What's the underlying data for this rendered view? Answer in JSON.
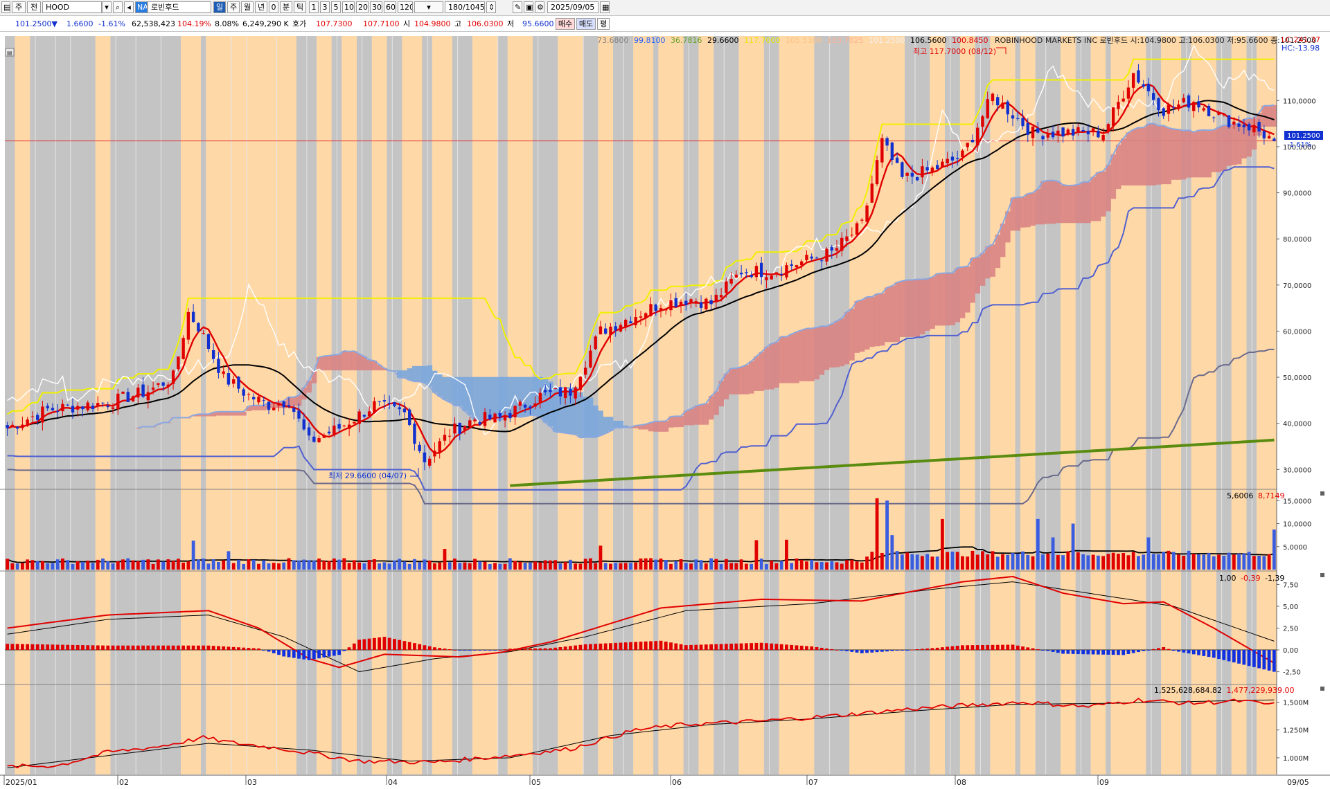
{
  "toolbar": {
    "period_buttons": [
      "주",
      "전"
    ],
    "ticker": "HOOD",
    "market_badge": "NA",
    "stock_name": "로빈후드",
    "mode_button": "일",
    "interval_buttons": [
      "주",
      "월",
      "년",
      "0",
      "분",
      "틱"
    ],
    "minute_buttons": [
      "1",
      "3",
      "5",
      "10",
      "20",
      "30",
      "60",
      "120"
    ],
    "bar_count": "180/1045",
    "date": "2025/09/05"
  },
  "quote": {
    "price": "101.2500▼",
    "change": "1.6600",
    "change_pct": "-1.61%",
    "volume": "62,538,423",
    "vol_ratio": "104.19%",
    "turnover": "8.08%",
    "amount": "6,249,290 K",
    "bid_label": "호가",
    "bid1": "107.7300",
    "bid2": "107.7100",
    "open_label": "시",
    "open": "104.9800",
    "high_label": "고",
    "high": "106.0300",
    "low_label": "저",
    "low": "95.6600",
    "buy_label": "매수",
    "sell_label": "매도",
    "eval_label": "평"
  },
  "chart_header": {
    "ma_values": [
      "73.6800",
      "99.8100",
      "36.7816",
      "29.6600",
      "117.7000",
      "105.5300",
      "103.7025",
      "101.2500",
      "106.5600",
      "100.8450"
    ],
    "ma_colors": [
      "#808080",
      "#2060ff",
      "#60a020",
      "#000000",
      "#e6e600",
      "#ffc080",
      "#ffb090",
      "#ffffff",
      "#000000",
      "#e00000"
    ],
    "company": "ROBINHOOD MARKETS INC  로빈후드 시:104.9800 고:106.0300 저:95.6600 종:101.2500",
    "lc": "LC:241.37",
    "hc": "HC:-13.98"
  },
  "annotations": {
    "high_label": "최고 117.7000 (08/12)",
    "low_label": "최저 29.6600 (04/07)",
    "current_price": "101.2500",
    "current_pct": "-1.61%"
  },
  "chart_data": [
    {
      "type": "candlestick",
      "panel": "price",
      "ticks": [
        "110,0000",
        "100,0000",
        "90,0000",
        "80,0000",
        "70,0000",
        "60,0000",
        "50,0000",
        "40,0000",
        "30,0000"
      ],
      "ylim": [
        26,
        124
      ],
      "months": [
        "2025/01",
        "02",
        "03",
        "04",
        "05",
        "06",
        "07",
        "08",
        "09"
      ],
      "axis_end": "09/05",
      "close_knots": [
        [
          0,
          39
        ],
        [
          8,
          43
        ],
        [
          20,
          44.5
        ],
        [
          28,
          47
        ],
        [
          33,
          50
        ],
        [
          36,
          64
        ],
        [
          38,
          61
        ],
        [
          43,
          50
        ],
        [
          48,
          46
        ],
        [
          52,
          44
        ],
        [
          56,
          45
        ],
        [
          60,
          36
        ],
        [
          66,
          39
        ],
        [
          73,
          44
        ],
        [
          79,
          42
        ],
        [
          83,
          32
        ],
        [
          88,
          38
        ],
        [
          93,
          41
        ],
        [
          98,
          41
        ],
        [
          106,
          46
        ],
        [
          112,
          47
        ],
        [
          118,
          60
        ],
        [
          124,
          63
        ],
        [
          130,
          66
        ],
        [
          136,
          67
        ],
        [
          140,
          66
        ],
        [
          146,
          73
        ],
        [
          152,
          73
        ],
        [
          158,
          75
        ],
        [
          164,
          77
        ],
        [
          170,
          83
        ],
        [
          174,
          101
        ],
        [
          178,
          93
        ],
        [
          184,
          95
        ],
        [
          190,
          98
        ],
        [
          196,
          111
        ],
        [
          204,
          103
        ],
        [
          212,
          103
        ],
        [
          218,
          103
        ],
        [
          224,
          116
        ],
        [
          230,
          108
        ],
        [
          236,
          110
        ],
        [
          242,
          106
        ],
        [
          248,
          104
        ],
        [
          252,
          101.25
        ]
      ]
    },
    {
      "type": "bar",
      "panel": "volume",
      "ticks": [
        "15,0000",
        "10,0000",
        "5,0000"
      ],
      "ylim": [
        0,
        17
      ],
      "header": [
        "5,6006",
        "8,7149"
      ],
      "peaks": [
        [
          37,
          6.3
        ],
        [
          44,
          4
        ],
        [
          87,
          4.5
        ],
        [
          118,
          5.2
        ],
        [
          149,
          6.4
        ],
        [
          155,
          6.5
        ],
        [
          173,
          15.5
        ],
        [
          175,
          15
        ],
        [
          176,
          7.5
        ],
        [
          186,
          11
        ],
        [
          205,
          11
        ],
        [
          208,
          7
        ],
        [
          212,
          10
        ],
        [
          227,
          7
        ],
        [
          252,
          8.7
        ]
      ]
    },
    {
      "type": "line",
      "panel": "macd",
      "ticks": [
        "7,50",
        "5,00",
        "2,50",
        "0,00",
        "-2,50"
      ],
      "ylim": [
        -3.8,
        8.8
      ],
      "header": [
        "1,00",
        "-0,39",
        "-1,39"
      ],
      "macd_knots": [
        [
          0,
          2.5
        ],
        [
          20,
          4.0
        ],
        [
          40,
          4.5
        ],
        [
          50,
          2.5
        ],
        [
          60,
          -1.0
        ],
        [
          66,
          -2.0
        ],
        [
          75,
          -0.5
        ],
        [
          90,
          -0.8
        ],
        [
          98,
          -0.3
        ],
        [
          108,
          0.9
        ],
        [
          130,
          4.8
        ],
        [
          150,
          5.8
        ],
        [
          170,
          5.6
        ],
        [
          190,
          7.8
        ],
        [
          200,
          8.4
        ],
        [
          210,
          6.5
        ],
        [
          222,
          5.3
        ],
        [
          230,
          5.5
        ],
        [
          240,
          2.5
        ],
        [
          252,
          -1.5
        ]
      ],
      "signal_knots": [
        [
          0,
          1.8
        ],
        [
          20,
          3.5
        ],
        [
          40,
          4.0
        ],
        [
          55,
          1.5
        ],
        [
          70,
          -2.5
        ],
        [
          85,
          -1.0
        ],
        [
          100,
          -0.2
        ],
        [
          115,
          1.5
        ],
        [
          135,
          4.5
        ],
        [
          160,
          5.3
        ],
        [
          185,
          7.0
        ],
        [
          200,
          7.8
        ],
        [
          215,
          6.5
        ],
        [
          232,
          5.0
        ],
        [
          252,
          1.0
        ]
      ]
    },
    {
      "type": "line",
      "panel": "obv",
      "ticks": [
        "1,500M",
        "1,250M",
        "1,000M"
      ],
      "ylim": [
        850,
        1640
      ],
      "header": [
        "1,525,628,684.82",
        "1,477,229,939.00"
      ],
      "obv_knots": [
        [
          0,
          920
        ],
        [
          10,
          930
        ],
        [
          20,
          1050
        ],
        [
          30,
          1100
        ],
        [
          39,
          1180
        ],
        [
          44,
          1140
        ],
        [
          55,
          1080
        ],
        [
          70,
          970
        ],
        [
          85,
          960
        ],
        [
          100,
          1020
        ],
        [
          112,
          1080
        ],
        [
          125,
          1250
        ],
        [
          135,
          1300
        ],
        [
          150,
          1330
        ],
        [
          165,
          1380
        ],
        [
          180,
          1440
        ],
        [
          190,
          1470
        ],
        [
          202,
          1500
        ],
        [
          215,
          1460
        ],
        [
          225,
          1520
        ],
        [
          235,
          1490
        ],
        [
          245,
          1510
        ],
        [
          252,
          1477
        ]
      ],
      "obv_ma_knots": [
        [
          0,
          910
        ],
        [
          20,
          1020
        ],
        [
          40,
          1130
        ],
        [
          60,
          1070
        ],
        [
          80,
          970
        ],
        [
          100,
          1000
        ],
        [
          120,
          1200
        ],
        [
          140,
          1300
        ],
        [
          160,
          1350
        ],
        [
          180,
          1420
        ],
        [
          200,
          1480
        ],
        [
          220,
          1490
        ],
        [
          240,
          1510
        ],
        [
          252,
          1520
        ]
      ]
    }
  ]
}
